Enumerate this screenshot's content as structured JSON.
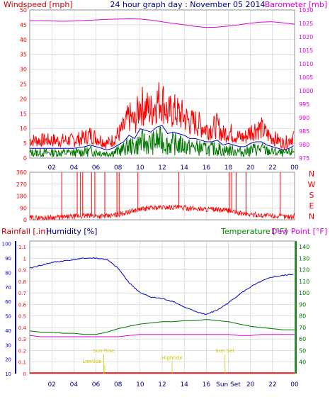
{
  "header": {
    "left_label": "Windspeed [mph]",
    "title": "24 hour graph day : November 05 2014",
    "right_label": "Barometer [mb]"
  },
  "colors": {
    "background": "#ffffff",
    "grid": "#c0c0c0",
    "axis": "#000000",
    "red": "#ff0000",
    "blue": "#0000cc",
    "green": "#007700",
    "magenta": "#dd00dd",
    "yellow": "#cccc00",
    "frame": "#b0b0b0",
    "label_blue": "#000088",
    "label_green": "#008800",
    "label_red": "#cc0000"
  },
  "x_axis": {
    "tick_labels": [
      "02",
      "04",
      "06",
      "08",
      "10",
      "12",
      "14",
      "16",
      "18",
      "20",
      "22",
      "00"
    ],
    "bottom_tick_labels": [
      "02",
      "04",
      "06",
      "08",
      "10",
      "12",
      "14",
      "16",
      "Sun Set",
      "20",
      "22",
      "00"
    ]
  },
  "panel1": {
    "left_ticks": [
      "0",
      "5",
      "10",
      "15",
      "20",
      "25",
      "30",
      "35",
      "40",
      "45",
      "50"
    ],
    "right_ticks": [
      "975",
      "980",
      "985",
      "990",
      "995",
      "1000",
      "1005",
      "1010",
      "1015",
      "1020",
      "1025",
      "1030"
    ]
  },
  "panel2": {
    "left_ticks": [
      "0",
      "90",
      "180",
      "270",
      "360"
    ],
    "compass": [
      "N",
      "W",
      "S",
      "E",
      "N"
    ]
  },
  "panel3": {
    "header_left": "Rainfall [.in]",
    "header_humidity": "Humidity [%]",
    "header_temperature": "Temperature [°F]",
    "header_dewpoint": "Dew Point [°F]",
    "rain_ticks": [
      "0",
      "0.1",
      "0.2",
      "0.3",
      "0.4",
      "0.5",
      "0.6",
      "0.7",
      "0.8",
      "0.9",
      "1",
      "1.1"
    ],
    "humidity_ticks": [
      "10",
      "20",
      "30",
      "40",
      "50",
      "60",
      "70",
      "80",
      "90",
      "100"
    ],
    "temp_ticks": [
      "40",
      "50",
      "60",
      "70",
      "80",
      "90",
      "100",
      "110",
      "120",
      "130",
      "140"
    ],
    "events": [
      {
        "label": "Lowtide",
        "x_hour": 6.8
      },
      {
        "label": "Sun Rise",
        "x_hour": 6.7
      },
      {
        "label": "Hightide",
        "x_hour": 12.9
      },
      {
        "label": "Sun Set",
        "x_hour": 17.7
      }
    ]
  },
  "chart_data": [
    {
      "type": "line",
      "xlabel": "",
      "xlim": [
        0,
        24
      ],
      "ylim": [
        0,
        50
      ],
      "y2lim": [
        975,
        1030
      ],
      "series": [
        {
          "name": "Windspeed [mph]",
          "axis": "left",
          "color": "#ff0000",
          "x": [
            0,
            1,
            2,
            3,
            4,
            5,
            5.5,
            6,
            6.5,
            7,
            7.5,
            8,
            8.5,
            9,
            9.5,
            10,
            10.5,
            11,
            11.5,
            12,
            12.5,
            13,
            13.5,
            14,
            14.5,
            15,
            15.5,
            16,
            16.5,
            17,
            17.5,
            18,
            18.5,
            19,
            19.5,
            20,
            20.5,
            21,
            21.5,
            22,
            22.5,
            23,
            23.5,
            24
          ],
          "values": [
            6,
            6,
            6,
            6,
            6,
            7,
            8,
            7,
            6,
            5,
            6,
            8,
            10,
            14,
            12,
            18,
            17,
            16,
            19,
            20,
            15,
            16,
            15,
            14,
            12,
            12,
            11,
            10,
            10,
            11,
            8,
            9,
            8,
            7,
            7,
            9,
            10,
            10,
            8,
            7,
            6,
            5,
            6,
            8
          ]
        },
        {
          "name": "Barometer [mb]",
          "axis": "right",
          "color": "#dd00dd",
          "x": [
            0,
            1,
            2,
            3,
            4,
            5,
            6,
            7,
            8,
            9,
            10,
            11,
            12,
            13,
            14,
            15,
            16,
            17,
            18,
            19,
            20,
            21,
            22,
            23,
            24
          ],
          "values": [
            1026,
            1026,
            1025.9,
            1025.8,
            1025.9,
            1026.1,
            1026.3,
            1026.5,
            1026.6,
            1026.7,
            1026.6,
            1026.2,
            1025.6,
            1025,
            1024.5,
            1023.9,
            1023.5,
            1023.6,
            1024,
            1024.5,
            1025.1,
            1025.5,
            1025.6,
            1025.2,
            1024.7
          ]
        }
      ]
    },
    {
      "type": "scatter",
      "xlabel": "",
      "xlim": [
        0,
        24
      ],
      "ylim": [
        0,
        360
      ],
      "series": [
        {
          "color": "#ff0000",
          "x": [
            0,
            1,
            2,
            3,
            4,
            5,
            6,
            7,
            8,
            9,
            10,
            11,
            12,
            13,
            14,
            15,
            16,
            17,
            18,
            19,
            20,
            21,
            22,
            23,
            24
          ],
          "values": [
            15,
            15,
            18,
            20,
            25,
            30,
            30,
            25,
            40,
            60,
            80,
            90,
            95,
            95,
            90,
            85,
            80,
            75,
            70,
            50,
            40,
            35,
            30,
            25,
            25
          ]
        }
      ]
    },
    {
      "type": "line",
      "xlabel": "",
      "xlim": [
        0,
        24
      ],
      "ylim": [
        10,
        100
      ],
      "y2lim": [
        30,
        145
      ],
      "series": [
        {
          "name": "Humidity [%]",
          "axis": "humidity",
          "color": "#0000cc",
          "x": [
            0,
            1,
            2,
            3,
            4,
            5,
            6,
            7,
            8,
            9,
            10,
            11,
            12,
            13,
            14,
            15,
            16,
            17,
            18,
            19,
            20,
            21,
            22,
            23,
            24
          ],
          "values": [
            83,
            85,
            87,
            88,
            89,
            90,
            90,
            89,
            83,
            73,
            66,
            63,
            62,
            60,
            56,
            53,
            51,
            54,
            59,
            65,
            70,
            74,
            77,
            78,
            79
          ]
        },
        {
          "name": "Temperature [°F]",
          "axis": "temperature",
          "color": "#007700",
          "x": [
            0,
            1,
            2,
            3,
            4,
            5,
            6,
            7,
            8,
            9,
            10,
            11,
            12,
            13,
            14,
            15,
            16,
            17,
            18,
            19,
            20,
            21,
            22,
            23,
            24
          ],
          "values": [
            67,
            66,
            66,
            65,
            65,
            64,
            64,
            66,
            69,
            71,
            73,
            74,
            75,
            75,
            76,
            76,
            77,
            76,
            75,
            73,
            71,
            70,
            69,
            68,
            68
          ]
        },
        {
          "name": "Dew Point [°F]",
          "axis": "temperature",
          "color": "#dd00dd",
          "x": [
            0,
            1,
            2,
            3,
            4,
            5,
            6,
            7,
            8,
            9,
            10,
            11,
            12,
            13,
            14,
            15,
            16,
            17,
            18,
            19,
            20,
            21,
            22,
            23,
            24
          ],
          "values": [
            63,
            62,
            62,
            62,
            62,
            62,
            62,
            62,
            62,
            63,
            64,
            64,
            64,
            64,
            64,
            64,
            64,
            64,
            64,
            63,
            63,
            64,
            64,
            64,
            64
          ]
        },
        {
          "name": "Rainfall [.in]",
          "axis": "rain",
          "color": "#ff0000",
          "x": [
            0,
            24
          ],
          "values": [
            0,
            0
          ]
        }
      ]
    }
  ]
}
